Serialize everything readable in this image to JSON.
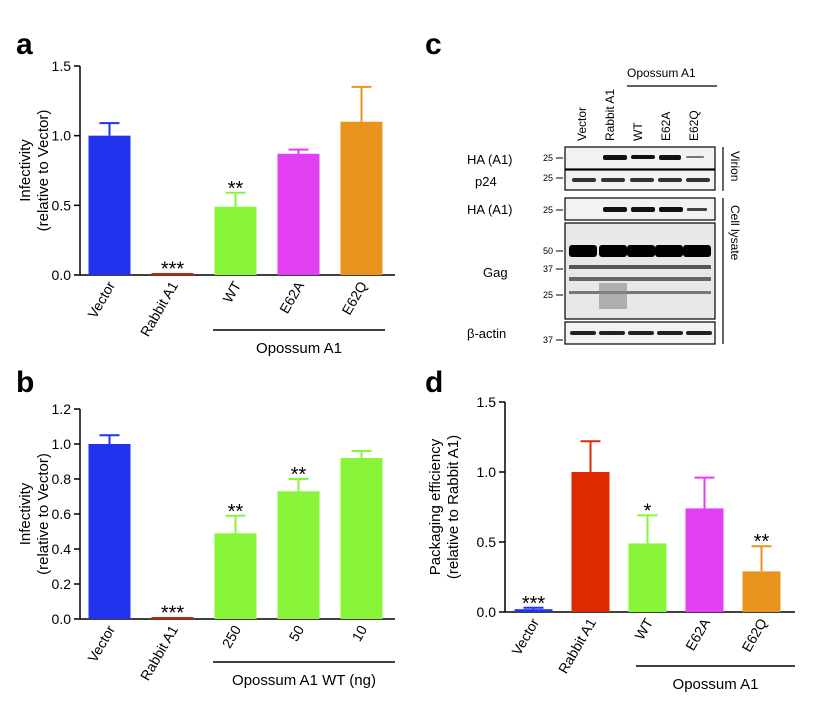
{
  "panels": {
    "a": {
      "letter": "a",
      "chart_data": {
        "type": "bar",
        "categories": [
          "Vector",
          "Rabbit A1",
          "WT",
          "E62A",
          "E62Q"
        ],
        "values": [
          1.0,
          0.01,
          0.49,
          0.87,
          1.1
        ],
        "errors": [
          0.09,
          0.0,
          0.1,
          0.03,
          0.25
        ],
        "colors": [
          "#2233ee",
          "#cc2200",
          "#88f53b",
          "#e23ef2",
          "#ea9420"
        ],
        "significance": [
          "",
          "***",
          "**",
          "",
          ""
        ],
        "ylabel": [
          "Infectivity",
          "(relative to Vector)"
        ],
        "ylim": [
          0,
          1.5
        ],
        "yticks": [
          "0.0",
          "0.5",
          "1.0",
          "1.5"
        ],
        "bracket_label": "Opossum A1",
        "bracket_span": [
          2,
          4
        ]
      }
    },
    "b": {
      "letter": "b",
      "chart_data": {
        "type": "bar",
        "categories": [
          "Vector",
          "Rabbit A1",
          "250",
          "50",
          "10"
        ],
        "values": [
          1.0,
          0.01,
          0.49,
          0.73,
          0.92
        ],
        "errors": [
          0.05,
          0.0,
          0.1,
          0.07,
          0.04
        ],
        "colors": [
          "#2233ee",
          "#cc2200",
          "#88f53b",
          "#88f53b",
          "#88f53b"
        ],
        "significance": [
          "",
          "***",
          "**",
          "**",
          ""
        ],
        "ylabel": [
          "Infectivity",
          "(relative to Vector)"
        ],
        "ylim": [
          0,
          1.2
        ],
        "yticks": [
          "0.0",
          "0.2",
          "0.4",
          "0.6",
          "0.8",
          "1.0",
          "1.2"
        ],
        "bracket_label": "Opossum A1 WT (ng)",
        "bracket_span": [
          2,
          4
        ]
      }
    },
    "d": {
      "letter": "d",
      "chart_data": {
        "type": "bar",
        "categories": [
          "Vector",
          "Rabbit A1",
          "WT",
          "E62A",
          "E62Q"
        ],
        "values": [
          0.02,
          1.0,
          0.49,
          0.74,
          0.29
        ],
        "errors": [
          0.01,
          0.22,
          0.2,
          0.22,
          0.18
        ],
        "colors": [
          "#2233ee",
          "#dd2a00",
          "#88f53b",
          "#e23ef2",
          "#ea9420"
        ],
        "significance": [
          "***",
          "",
          "*",
          "",
          "**"
        ],
        "ylabel": [
          "Packaging efficiency",
          "(relative to Rabbit A1)"
        ],
        "ylim": [
          0,
          1.5
        ],
        "yticks": [
          "0.0",
          "0.5",
          "1.0",
          "1.5"
        ],
        "bracket_label": "Opossum A1",
        "bracket_span": [
          2,
          4
        ]
      }
    }
  },
  "blot": {
    "letter": "c",
    "group_label": "Opossum A1",
    "lanes": [
      "Vector",
      "Rabbit A1",
      "WT",
      "E62A",
      "E62Q"
    ],
    "row_labels": {
      "ha_virion": "HA (A1)",
      "p24": "p24",
      "ha_lysate": "HA (A1)",
      "gag": "Gag",
      "actin": "β-actin"
    },
    "markers": {
      "ha_virion": "25",
      "p24": "25",
      "ha_lysate": "25",
      "gag_50": "50",
      "gag_37": "37",
      "gag_25": "25",
      "actin": "37"
    },
    "side_labels": {
      "virion": "Virion",
      "lysate": "Cell lysate"
    }
  }
}
